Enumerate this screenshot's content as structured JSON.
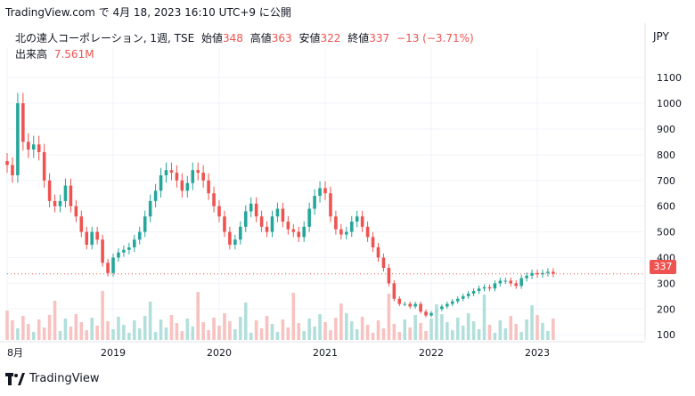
{
  "header": {
    "attribution": "TradingView.com で 4月 18, 2023 16:10 UTC+9 に公開"
  },
  "legend": {
    "symbol": "北の達人コーポレーション, 1週, TSE",
    "open_label": "始値",
    "open": "348",
    "high_label": "高値",
    "high": "363",
    "low_label": "安値",
    "low": "322",
    "close_label": "終値",
    "close": "337",
    "change": "−13 (−3.71%)",
    "volume_label": "出来高",
    "volume": "7.561M"
  },
  "currency": "JPY",
  "last_price_tag": "337",
  "footer": {
    "brand": "TradingView"
  },
  "colors": {
    "up": "#26a69a",
    "down": "#ef5350",
    "vol_up": "#b2dfdb",
    "vol_down": "#f7c2c0",
    "text": "#131722"
  },
  "icons": [
    "tradingview-logo-icon"
  ],
  "chart_data": {
    "type": "candlestick",
    "title": "北の達人コーポレーション, 1週, TSE",
    "ylabel": "JPY",
    "ylim": [
      80,
      1180
    ],
    "y_ticks": [
      100,
      200,
      300,
      400,
      500,
      600,
      700,
      800,
      900,
      1000,
      1100
    ],
    "x_ticks": [
      "8月",
      "2019",
      "2020",
      "2021",
      "2022",
      "2023"
    ],
    "x_tick_positions": [
      0,
      20,
      40,
      60,
      80,
      100
    ],
    "x_range": [
      0,
      120
    ],
    "grid": true,
    "close_series": {
      "x": [
        0,
        1,
        2,
        3,
        4,
        5,
        6,
        7,
        8,
        9,
        10,
        11,
        12,
        13,
        14,
        15,
        16,
        17,
        18,
        19,
        20,
        21,
        22,
        23,
        24,
        25,
        26,
        27,
        28,
        29,
        30,
        31,
        32,
        33,
        34,
        35,
        36,
        37,
        38,
        39,
        40,
        41,
        42,
        43,
        44,
        45,
        46,
        47,
        48,
        49,
        50,
        51,
        52,
        53,
        54,
        55,
        56,
        57,
        58,
        59,
        60,
        61,
        62,
        63,
        64,
        65,
        66,
        67,
        68,
        69,
        70,
        71,
        72,
        73,
        74,
        75,
        76,
        77,
        78,
        79,
        80,
        81,
        82,
        83,
        84,
        85,
        86,
        87,
        88,
        89,
        90,
        91,
        92,
        93,
        94,
        95,
        96,
        97,
        98,
        99,
        100,
        101,
        102,
        103
      ],
      "close": [
        760,
        720,
        1000,
        850,
        820,
        840,
        810,
        700,
        620,
        600,
        620,
        680,
        600,
        560,
        500,
        450,
        500,
        470,
        380,
        340,
        400,
        420,
        430,
        440,
        470,
        500,
        560,
        620,
        660,
        720,
        740,
        730,
        700,
        660,
        690,
        740,
        730,
        700,
        650,
        600,
        560,
        500,
        450,
        470,
        520,
        580,
        610,
        560,
        520,
        500,
        560,
        590,
        540,
        510,
        500,
        480,
        520,
        590,
        640,
        670,
        650,
        560,
        510,
        490,
        500,
        540,
        560,
        520,
        480,
        440,
        400,
        360,
        300,
        240,
        220,
        220,
        210,
        220,
        190,
        175,
        185,
        200,
        210,
        220,
        230,
        240,
        250,
        260,
        270,
        280,
        285,
        280,
        300,
        310,
        310,
        300,
        290,
        320,
        330,
        340,
        335,
        340,
        345,
        337
      ]
    },
    "ohlc_last": {
      "open": 348,
      "high": 363,
      "low": 322,
      "close": 337
    },
    "volume_last": "7.561M",
    "reference_line": 337
  }
}
